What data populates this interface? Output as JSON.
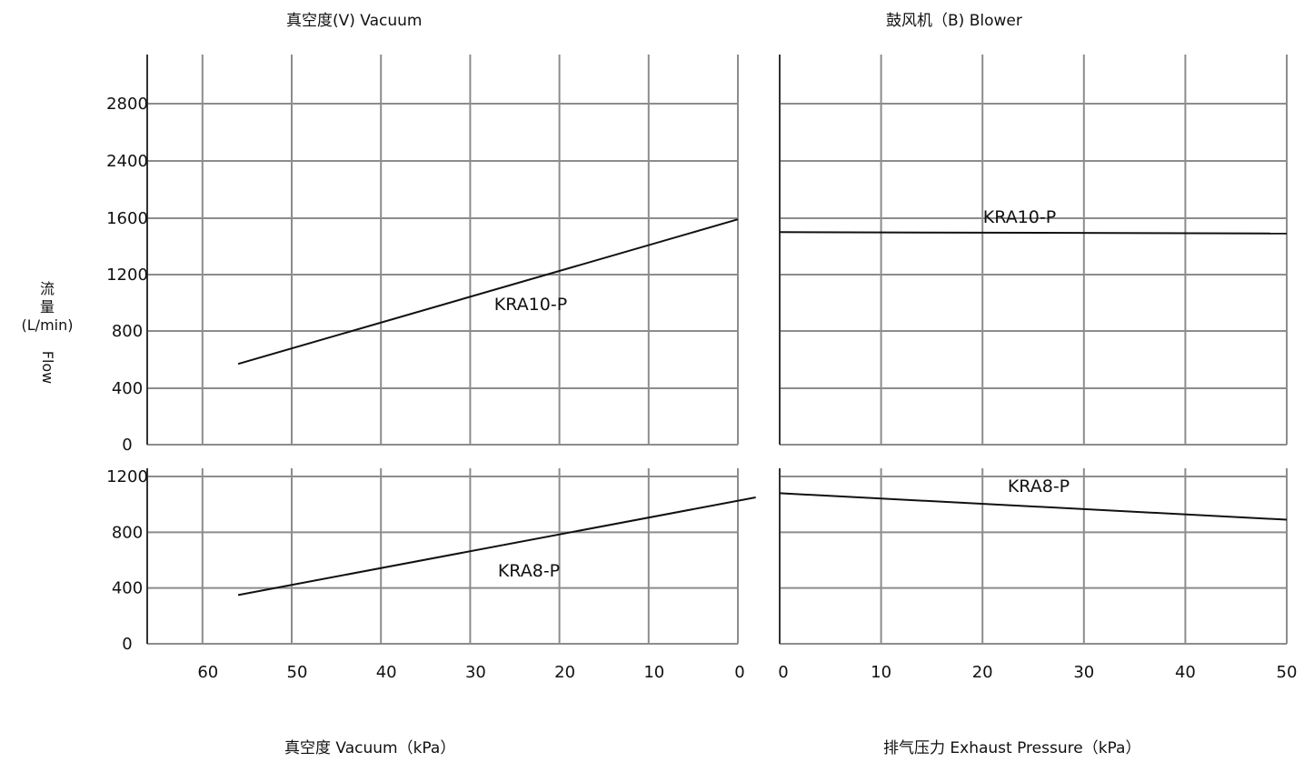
{
  "titles": {
    "left": "真空度(V) Vacuum",
    "right": "鼓风机（B) Blower"
  },
  "y_label": {
    "cn_char1": "流",
    "cn_char2": "量",
    "unit": "(L/min)",
    "en": "Flow"
  },
  "x_labels": {
    "left": "真空度  Vacuum（kPa）",
    "right": "排气压力  Exhaust Pressure（kPa）"
  },
  "chart_data": [
    {
      "type": "line",
      "panel": "vacuum-upper",
      "series": [
        {
          "name": "KRA10-P",
          "x": [
            56,
            0
          ],
          "y": [
            570,
            1590
          ]
        }
      ],
      "x_ticks": [
        60,
        50,
        40,
        30,
        20,
        10,
        0
      ],
      "y_ticks": [
        0,
        400,
        800,
        1200,
        1600,
        2400,
        2800
      ],
      "xlabel": "真空度  Vacuum（kPa）",
      "ylabel": "流量 (L/min) Flow",
      "xlim": [
        66,
        0
      ],
      "ylim": [
        0,
        3000
      ],
      "grid": true
    },
    {
      "type": "line",
      "panel": "vacuum-lower",
      "series": [
        {
          "name": "KRA8-P",
          "x": [
            56,
            -2
          ],
          "y": [
            350,
            1050
          ]
        }
      ],
      "x_ticks": [
        60,
        50,
        40,
        30,
        20,
        10,
        0
      ],
      "y_ticks": [
        0,
        400,
        800,
        1200
      ],
      "xlabel": "真空度  Vacuum（kPa）",
      "ylim": [
        0,
        1280
      ],
      "grid": true
    },
    {
      "type": "line",
      "panel": "blower-upper",
      "series": [
        {
          "name": "KRA10-P",
          "x": [
            0,
            50
          ],
          "y": [
            1500,
            1490
          ]
        }
      ],
      "x_ticks": [
        0,
        10,
        20,
        30,
        40,
        50
      ],
      "xlabel": "排气压力  Exhaust Pressure（kPa）",
      "xlim": [
        0,
        50
      ],
      "ylim": [
        0,
        3000
      ],
      "grid": true
    },
    {
      "type": "line",
      "panel": "blower-lower",
      "series": [
        {
          "name": "KRA8-P",
          "x": [
            0,
            50
          ],
          "y": [
            1080,
            890
          ]
        }
      ],
      "x_ticks": [
        0,
        10,
        20,
        30,
        40,
        50
      ],
      "xlabel": "排气压力  Exhaust Pressure（kPa）",
      "xlim": [
        0,
        50
      ],
      "ylim": [
        0,
        1280
      ],
      "grid": true
    }
  ],
  "colors": {
    "grid": "#8c8c8c",
    "axis": "#333333",
    "line": "#111111"
  }
}
